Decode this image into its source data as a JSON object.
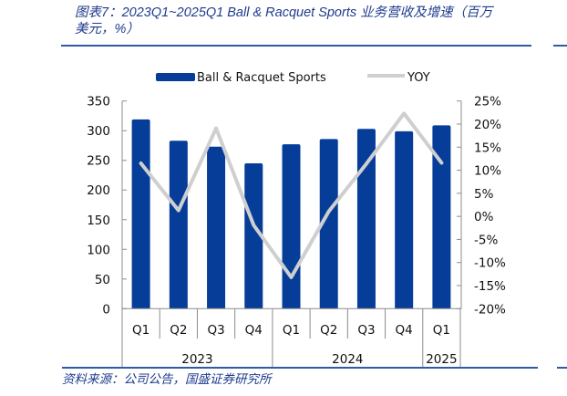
{
  "header": {
    "title_line1": "图表7：2023Q1~2025Q1 Ball & Racquet Sports 业务营收及增速（百万",
    "title_line2": "美元，%）"
  },
  "legend": {
    "bar_label": "Ball & Racquet Sports",
    "line_label": "YOY"
  },
  "footer": {
    "source": "资料来源：公司公告，国盛证券研究所"
  },
  "colors": {
    "bar": "#063D98",
    "line": "#CFCFCF",
    "text_blue": "#1F3C8E",
    "rule": "#2F5AA8",
    "axis": "#8C8C8C"
  },
  "chart_data": {
    "type": "bar",
    "title": "图表7：2023Q1~2025Q1 Ball & Racquet Sports 业务营收及增速（百万美元，%）",
    "xlabel": "",
    "ylabel": "百万美元",
    "y2label": "%",
    "categories": [
      "Q1",
      "Q2",
      "Q3",
      "Q4",
      "Q1",
      "Q2",
      "Q3",
      "Q4",
      "Q1"
    ],
    "category_groups": [
      {
        "label": "2023",
        "span": 4
      },
      {
        "label": "2024",
        "span": 4
      },
      {
        "label": "2025",
        "span": 1
      }
    ],
    "series": [
      {
        "name": "Ball & Racquet Sports",
        "type": "bar",
        "axis": "left",
        "values": [
          319,
          283,
          273,
          245,
          277,
          286,
          303,
          299,
          309
        ]
      },
      {
        "name": "YOY",
        "type": "line",
        "axis": "right",
        "unit": "%",
        "values": [
          11.5,
          1.3,
          19.1,
          -1.9,
          -13.2,
          1.1,
          11.4,
          22.3,
          11.6
        ]
      }
    ],
    "ylim": [
      0,
      350
    ],
    "yticks": [
      "0",
      "50",
      "100",
      "150",
      "200",
      "250",
      "300",
      "350"
    ],
    "y2lim": [
      -20,
      25
    ],
    "y2ticks": [
      "-20%",
      "-15%",
      "-10%",
      "-5%",
      "0%",
      "5%",
      "10%",
      "15%",
      "20%",
      "25%"
    ],
    "grid": false,
    "legend_position": "top"
  }
}
